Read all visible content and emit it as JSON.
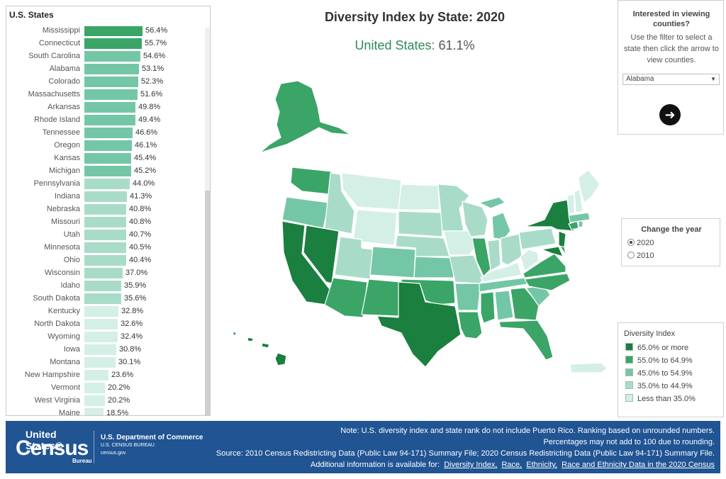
{
  "left_panel": {
    "title": "U.S. States",
    "rows": [
      {
        "state": "Mississippi",
        "value": 56.4,
        "label": "56.4%",
        "color": "#3aa566"
      },
      {
        "state": "Connecticut",
        "value": 55.7,
        "label": "55.7%",
        "color": "#3aa566"
      },
      {
        "state": "South Carolina",
        "value": 54.6,
        "label": "54.6%",
        "color": "#74c7a6"
      },
      {
        "state": "Alabama",
        "value": 53.1,
        "label": "53.1%",
        "color": "#74c7a6"
      },
      {
        "state": "Colorado",
        "value": 52.3,
        "label": "52.3%",
        "color": "#74c7a6"
      },
      {
        "state": "Massachusetts",
        "value": 51.6,
        "label": "51.6%",
        "color": "#74c7a6"
      },
      {
        "state": "Arkansas",
        "value": 49.8,
        "label": "49.8%",
        "color": "#74c7a6"
      },
      {
        "state": "Rhode Island",
        "value": 49.4,
        "label": "49.4%",
        "color": "#74c7a6"
      },
      {
        "state": "Tennessee",
        "value": 46.6,
        "label": "46.6%",
        "color": "#74c7a6"
      },
      {
        "state": "Oregon",
        "value": 46.1,
        "label": "46.1%",
        "color": "#74c7a6"
      },
      {
        "state": "Kansas",
        "value": 45.4,
        "label": "45.4%",
        "color": "#74c7a6"
      },
      {
        "state": "Michigan",
        "value": 45.2,
        "label": "45.2%",
        "color": "#74c7a6"
      },
      {
        "state": "Pennsylvania",
        "value": 44.0,
        "label": "44.0%",
        "color": "#a9dcc8"
      },
      {
        "state": "Indiana",
        "value": 41.3,
        "label": "41.3%",
        "color": "#a9dcc8"
      },
      {
        "state": "Nebraska",
        "value": 40.8,
        "label": "40.8%",
        "color": "#a9dcc8"
      },
      {
        "state": "Missouri",
        "value": 40.8,
        "label": "40.8%",
        "color": "#a9dcc8"
      },
      {
        "state": "Utah",
        "value": 40.7,
        "label": "40.7%",
        "color": "#a9dcc8"
      },
      {
        "state": "Minnesota",
        "value": 40.5,
        "label": "40.5%",
        "color": "#a9dcc8"
      },
      {
        "state": "Ohio",
        "value": 40.4,
        "label": "40.4%",
        "color": "#a9dcc8"
      },
      {
        "state": "Wisconsin",
        "value": 37.0,
        "label": "37.0%",
        "color": "#a9dcc8"
      },
      {
        "state": "Idaho",
        "value": 35.9,
        "label": "35.9%",
        "color": "#a9dcc8"
      },
      {
        "state": "South Dakota",
        "value": 35.6,
        "label": "35.6%",
        "color": "#a9dcc8"
      },
      {
        "state": "Kentucky",
        "value": 32.8,
        "label": "32.8%",
        "color": "#d4efe6"
      },
      {
        "state": "North Dakota",
        "value": 32.6,
        "label": "32.6%",
        "color": "#d4efe6"
      },
      {
        "state": "Wyoming",
        "value": 32.4,
        "label": "32.4%",
        "color": "#d4efe6"
      },
      {
        "state": "Iowa",
        "value": 30.8,
        "label": "30.8%",
        "color": "#d4efe6"
      },
      {
        "state": "Montana",
        "value": 30.1,
        "label": "30.1%",
        "color": "#d4efe6"
      },
      {
        "state": "New Hampshire",
        "value": 23.6,
        "label": "23.6%",
        "color": "#d4efe6"
      },
      {
        "state": "Vermont",
        "value": 20.2,
        "label": "20.2%",
        "color": "#d4efe6"
      },
      {
        "state": "West Virginia",
        "value": 20.2,
        "label": "20.2%",
        "color": "#d4efe6"
      },
      {
        "state": "Maine",
        "value": 18.5,
        "label": "18.5%",
        "color": "#d4efe6"
      }
    ]
  },
  "header": {
    "title": "Diversity Index by State: 2020",
    "us_label": "United States:",
    "us_value": "61.1%"
  },
  "counties_panel": {
    "heading": "Interested in viewing counties?",
    "text": "Use the filter to select a state then click the arrow to view counties.",
    "selected_state": "Alabama",
    "go_icon": "arrow-right-circle-icon"
  },
  "year_panel": {
    "title": "Change the year",
    "options": [
      {
        "label": "2020",
        "selected": true
      },
      {
        "label": "2010",
        "selected": false
      }
    ]
  },
  "legend": {
    "title": "Diversity Index",
    "items": [
      {
        "label": "65.0% or more",
        "color": "#1a7f3f"
      },
      {
        "label": "55.0% to 64.9%",
        "color": "#3aa566"
      },
      {
        "label": "45.0% to 54.9%",
        "color": "#74c7a6"
      },
      {
        "label": "35.0% to 44.9%",
        "color": "#a9dcc8"
      },
      {
        "label": "Less than 35.0%",
        "color": "#d4efe6"
      }
    ]
  },
  "footer": {
    "logo_top": "United States®",
    "logo_big": "Census",
    "logo_bureau": "Bureau",
    "dept_line1": "U.S. Department of Commerce",
    "dept_line2": "U.S. CENSUS BUREAU",
    "dept_line3": "census.gov",
    "note1": "Note: U.S. diversity index and state rank do not include Puerto Rico. Ranking based on unrounded numbers.",
    "note2": "Percentages may not add to 100 due to rounding.",
    "note3": "Source: 2010 Census Redistricting Data (Public Law 94-171) Summary File; 2020 Census Redistricting Data (Public Law 94-171) Summary File.",
    "note4": "Additional information is available for:",
    "links": [
      "Diversity Index,",
      "Race,",
      "Ethnicity,",
      "Race and Ethnicity Data in the 2020 Census"
    ]
  }
}
